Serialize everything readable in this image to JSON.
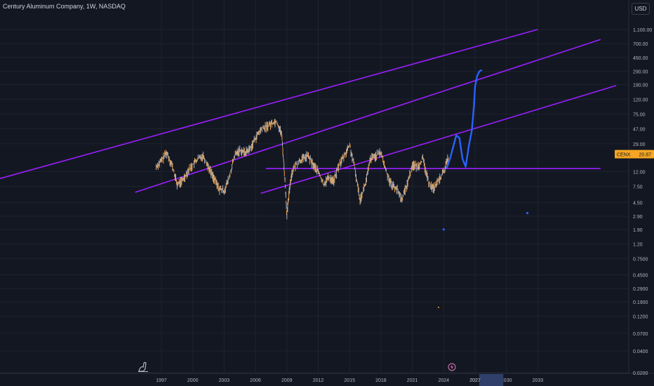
{
  "header": {
    "title": "Century Aluminum Company, 1W, NASDAQ",
    "currency_button": "USD"
  },
  "price_tag": {
    "symbol": "CENX",
    "value": "20.87"
  },
  "colors": {
    "background": "#131722",
    "grid": "#1f2330",
    "channel": "#9b1fff",
    "forecast": "#2962ff",
    "candle": "#f0a040",
    "price_tag": "#f5a623",
    "axis_text": "#b2b5be"
  },
  "icons": [
    "dinosaur-icon",
    "lightning-event-icon"
  ],
  "chart_data": {
    "type": "line",
    "title": "Century Aluminum Company, 1W, NASDAQ",
    "y_scale": "log",
    "ylim": [
      0.02,
      2000
    ],
    "x_ticks": [
      "1997",
      "2000",
      "2003",
      "2006",
      "2009",
      "2012",
      "2015",
      "2018",
      "2021",
      "2024",
      "2027",
      "2030",
      "2033"
    ],
    "y_ticks": [
      "1,100.00",
      "700.00",
      "450.00",
      "290.00",
      "190.00",
      "120.00",
      "75.00",
      "47.00",
      "29.00",
      "12.00",
      "7.50",
      "4.50",
      "2.90",
      "1.90",
      "1.20",
      "0.7500",
      "0.4500",
      "0.2900",
      "0.1900",
      "0.1200",
      "0.0700",
      "0.0400",
      "0.0200"
    ],
    "grid": true,
    "series": [
      {
        "type": "candles",
        "x": [
          1996.5,
          1997.0,
          1997.5,
          1998.0,
          1998.5,
          1999.0,
          1999.5,
          2000.0,
          2000.5,
          2001.0,
          2001.5,
          2002.0,
          2002.5,
          2003.0,
          2003.5,
          2004.0,
          2004.5,
          2005.0,
          2005.5,
          2006.0,
          2006.5,
          2007.0,
          2007.5,
          2008.0,
          2008.5,
          2008.8,
          2009.0,
          2009.3,
          2009.5,
          2010.0,
          2010.5,
          2011.0,
          2011.5,
          2012.0,
          2012.5,
          2013.0,
          2013.5,
          2014.0,
          2014.5,
          2015.0,
          2015.5,
          2016.0,
          2016.5,
          2017.0,
          2017.5,
          2018.0,
          2018.5,
          2019.0,
          2019.5,
          2020.0,
          2020.5,
          2021.0,
          2021.5,
          2022.0,
          2022.5,
          2023.0,
          2023.5,
          2024.0,
          2024.5
        ],
        "values": [
          14,
          17,
          22,
          15,
          8,
          9,
          12,
          15,
          18,
          20,
          14,
          10,
          7,
          6.5,
          10,
          20,
          24,
          22,
          25,
          35,
          45,
          50,
          55,
          60,
          40,
          10,
          3,
          8,
          12,
          16,
          18,
          20,
          15,
          12,
          8,
          10,
          9,
          15,
          20,
          28,
          13,
          5,
          8,
          18,
          20,
          22,
          12,
          8,
          7,
          5,
          8,
          15,
          14,
          18,
          9,
          7,
          9,
          12,
          20
        ]
      },
      {
        "name": "",
        "type": "forecast",
        "x": [
          2024.3,
          2024.6,
          2024.9,
          2025.2,
          2025.5,
          2025.8,
          2026.1,
          2026.4,
          2026.7,
          2026.9,
          2027.0,
          2027.2,
          2027.4,
          2027.6
        ],
        "values": [
          13.5,
          18,
          26,
          38,
          35,
          18,
          14,
          27,
          45,
          100,
          180,
          250,
          290,
          300
        ]
      }
    ],
    "trendlines": [
      {
        "name": "",
        "from": [
          1971.5,
          3.8
        ],
        "to": [
          2033.0,
          1100
        ]
      },
      {
        "name": "",
        "from": [
          1994.5,
          6.2
        ],
        "to": [
          2039.0,
          800
        ]
      },
      {
        "name": "",
        "from": [
          2006.5,
          6.0
        ],
        "to": [
          2040.5,
          185
        ]
      },
      {
        "name": "",
        "from": [
          2007.0,
          13.2
        ],
        "to": [
          2039.0,
          13.2
        ]
      }
    ],
    "markers": [
      {
        "x": 2024.0,
        "y": 1.9
      },
      {
        "x": 2032.0,
        "y": 3.2
      },
      {
        "x": 2023.5,
        "y": 0.16
      }
    ],
    "last_price": 20.87
  }
}
